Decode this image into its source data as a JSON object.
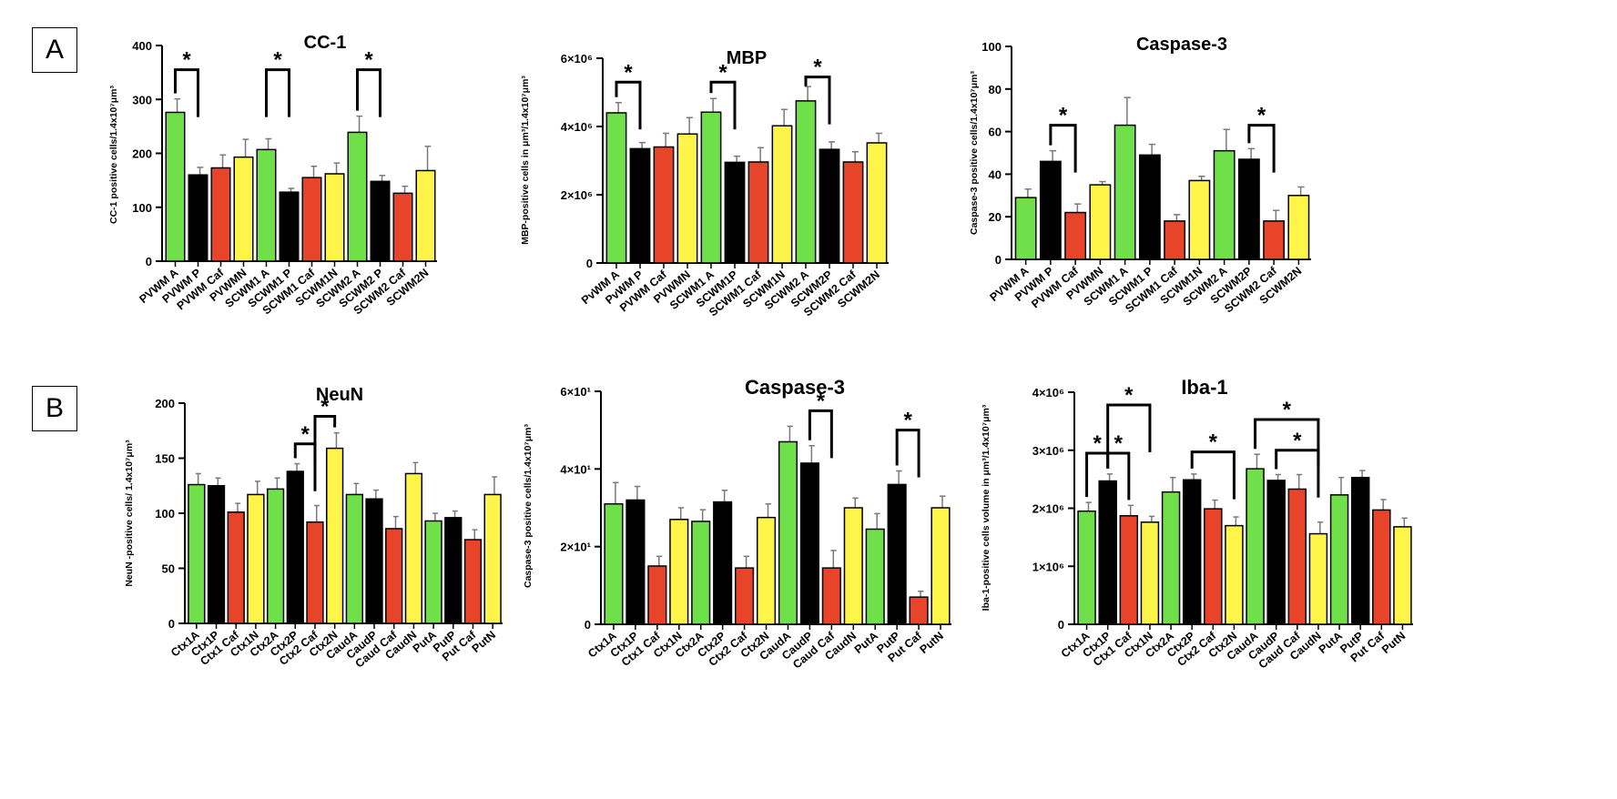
{
  "panels": {
    "a": "A",
    "b": "B"
  },
  "colors": {
    "A": "#6fe04a",
    "P": "#000000",
    "Caf": "#e8442a",
    "N": "#fff44a",
    "axis": "#000000",
    "error": "#7a7a7a"
  },
  "chart_data": [
    {
      "type": "bar",
      "title": "CC-1",
      "ylabel": "CC-1 positive cells/1.4x10⁷μm³",
      "ylim": [
        0,
        400
      ],
      "yticks": [
        "0",
        "100",
        "200",
        "300",
        "400"
      ],
      "categories": [
        "PVWM A",
        "PVWM P",
        "PVWM Caf",
        "PVWMN",
        "SCWM1 A",
        "SCWM1 P",
        "SCWM1 Caf",
        "SCWM1N",
        "SCWM2 A",
        "SCWM2 P",
        "SCWM2 Caf",
        "SCWM2N"
      ],
      "values": [
        276,
        160,
        173,
        193,
        207,
        128,
        155,
        162,
        239,
        148,
        126,
        168
      ],
      "errors": [
        25,
        14,
        24,
        33,
        20,
        7,
        21,
        20,
        30,
        11,
        13,
        45
      ],
      "groups": [
        "A",
        "P",
        "Caf",
        "N",
        "A",
        "P",
        "Caf",
        "N",
        "A",
        "P",
        "Caf",
        "N"
      ],
      "significance": [
        {
          "from": 0,
          "to": 1,
          "label": "*",
          "level": 355
        },
        {
          "from": 4,
          "to": 5,
          "label": "*",
          "level": 355
        },
        {
          "from": 8,
          "to": 9,
          "label": "*",
          "level": 355
        }
      ]
    },
    {
      "type": "bar",
      "title": "MBP",
      "ylabel": "MBP-positive cells in μm³/1.4x10⁷μm³",
      "ylim": [
        0,
        6000000
      ],
      "yticks": [
        "0",
        "2×10⁶",
        "4×10⁶",
        "6×10⁶"
      ],
      "categories": [
        "PvWM A",
        "PvWM P",
        "PVWM Caf",
        "PVWMN",
        "SCWM1 A",
        "SCWM1P",
        "SCWM1 Caf",
        "SCWM1N",
        "SCWM2 A",
        "SCWM2P",
        "SCWM2 Caf",
        "SCWM2N"
      ],
      "values": [
        4400000,
        3350000,
        3400000,
        3780000,
        4420000,
        2950000,
        2960000,
        4020000,
        4750000,
        3330000,
        2960000,
        3520000
      ],
      "errors": [
        300000,
        180000,
        400000,
        480000,
        400000,
        180000,
        420000,
        480000,
        420000,
        220000,
        300000,
        280000
      ],
      "groups": [
        "A",
        "P",
        "Caf",
        "N",
        "A",
        "P",
        "Caf",
        "N",
        "A",
        "P",
        "Caf",
        "N"
      ],
      "significance": [
        {
          "from": 0,
          "to": 1,
          "label": "*",
          "level": 5300000
        },
        {
          "from": 4,
          "to": 5,
          "label": "*",
          "level": 5300000
        },
        {
          "from": 8,
          "to": 9,
          "label": "*",
          "level": 5450000
        }
      ]
    },
    {
      "type": "bar",
      "title": "Caspase-3",
      "ylabel": "Caspase-3 positive cells/1.4x10⁷μm³",
      "ylim": [
        0,
        100
      ],
      "yticks": [
        "0",
        "20",
        "40",
        "60",
        "80",
        "100"
      ],
      "categories": [
        "PVWM A",
        "PVWM P",
        "PVWM Caf",
        "PVWMN",
        "SCWM1 A",
        "SCWM1 P",
        "SCWM1 Caf",
        "SCWM1N",
        "SCWM2 A",
        "SCWM2P",
        "SCWM2 Caf",
        "SCWM2N"
      ],
      "values": [
        29,
        46,
        22,
        35,
        63,
        49,
        18,
        37,
        51,
        47,
        18,
        30
      ],
      "errors": [
        4,
        5,
        4,
        1.5,
        13,
        5,
        3,
        2,
        10,
        5,
        5,
        4
      ],
      "groups": [
        "A",
        "P",
        "Caf",
        "N",
        "A",
        "P",
        "Caf",
        "N",
        "A",
        "P",
        "Caf",
        "N"
      ],
      "significance": [
        {
          "from": 1,
          "to": 2,
          "label": "*",
          "level": 63
        },
        {
          "from": 9,
          "to": 10,
          "label": "*",
          "level": 63
        }
      ]
    },
    {
      "type": "bar",
      "title": "NeuN",
      "ylabel": "NeuN -positive cells/ 1.4x10⁷μm³",
      "ylim": [
        0,
        200
      ],
      "yticks": [
        "0",
        "50",
        "100",
        "150",
        "200"
      ],
      "categories": [
        "Ctx1A",
        "Ctx1P",
        "Ctx1 Caf",
        "Ctx1N",
        "Ctx2A",
        "Ctx2P",
        "Ctx2 Caf",
        "Ctx2N",
        "CaudA",
        "CaudP",
        "Caud Caf",
        "CaudN",
        "PutA",
        "PutP",
        "Put Caf",
        "PutN"
      ],
      "values": [
        126,
        125,
        101,
        117,
        122,
        138,
        92,
        159,
        117,
        113,
        86,
        136,
        93,
        96,
        76,
        117
      ],
      "errors": [
        10,
        7,
        8,
        12,
        10,
        7,
        15,
        14,
        10,
        8,
        11,
        10,
        7,
        6,
        9,
        16
      ],
      "groups": [
        "A",
        "P",
        "Caf",
        "N",
        "A",
        "P",
        "Caf",
        "N",
        "A",
        "P",
        "Caf",
        "N",
        "A",
        "P",
        "Caf",
        "N"
      ],
      "significance": [
        {
          "from": 5,
          "to": 6,
          "label": "*",
          "level": 163
        },
        {
          "from": 6,
          "to": 7,
          "label": "*",
          "level": 188
        }
      ]
    },
    {
      "type": "bar",
      "title": "Caspase-3",
      "ylabel": "Caspase-3 positive cells/1.4x10⁷μm³",
      "ylim": [
        0,
        60
      ],
      "yticks": [
        "0",
        "2×10¹",
        "4×10¹",
        "6×10¹"
      ],
      "categories": [
        "Ctx1A",
        "Ctx1P",
        "Ctx1 Caf",
        "Ctx1N",
        "Ctx2A",
        "Ctx2P",
        "Ctx2 Caf",
        "Ctx2N",
        "CaudA",
        "CaudP",
        "Caud Caf",
        "CaudN",
        "PutA",
        "PutP",
        "Put Caf",
        "PutN"
      ],
      "values": [
        31,
        32,
        15,
        27,
        26.5,
        31.5,
        14.5,
        27.5,
        47,
        41.5,
        14.5,
        30,
        24.5,
        36,
        7,
        30
      ],
      "errors": [
        5.5,
        3.5,
        2.5,
        3,
        3,
        3,
        3,
        3.5,
        4,
        4.5,
        4.5,
        2.5,
        4,
        3.5,
        1.5,
        3
      ],
      "groups": [
        "A",
        "P",
        "Caf",
        "N",
        "A",
        "P",
        "Caf",
        "N",
        "A",
        "P",
        "Caf",
        "N",
        "A",
        "P",
        "Caf",
        "N"
      ],
      "significance": [
        {
          "from": 9,
          "to": 10,
          "label": "*",
          "level": 55
        },
        {
          "from": 13,
          "to": 14,
          "label": "*",
          "level": 50
        }
      ]
    },
    {
      "type": "bar",
      "title": "Iba-1",
      "ylabel": "Iba-1-positive cells volume in μm³/1.4x10⁷μm³",
      "ylim": [
        0,
        4000000
      ],
      "yticks": [
        "0",
        "1×10⁶",
        "2×10⁶",
        "3×10⁶",
        "4×10⁶"
      ],
      "categories": [
        "Ctx1A",
        "Ctx1P",
        "Ctx1 Caf",
        "Ctx1N",
        "Ctx2A",
        "Ctx2P",
        "Ctx2 Caf",
        "Ctx2N",
        "CaudA",
        "CaudP",
        "Caud Caf",
        "CaudN",
        "PutA",
        "PutP",
        "Put Caf",
        "PutN"
      ],
      "values": [
        1950000,
        2470000,
        1870000,
        1760000,
        2280000,
        2490000,
        1990000,
        1700000,
        2680000,
        2480000,
        2330000,
        1560000,
        2230000,
        2530000,
        1970000,
        1680000
      ],
      "errors": [
        150000,
        120000,
        180000,
        100000,
        250000,
        100000,
        150000,
        150000,
        250000,
        100000,
        250000,
        200000,
        300000,
        120000,
        180000,
        150000
      ],
      "groups": [
        "A",
        "P",
        "Caf",
        "N",
        "A",
        "P",
        "Caf",
        "N",
        "A",
        "P",
        "Caf",
        "N",
        "A",
        "P",
        "Caf",
        "N"
      ],
      "significance": [
        {
          "from": 0,
          "to": 1,
          "label": "*",
          "level": 2950000
        },
        {
          "from": 1,
          "to": 2,
          "label": "*",
          "level": 2950000
        },
        {
          "from": 1,
          "to": 3,
          "label": "*",
          "level": 3780000
        },
        {
          "from": 5,
          "to": 7,
          "label": "*",
          "level": 2970000
        },
        {
          "from": 8,
          "to": 11,
          "label": "*",
          "level": 3530000
        },
        {
          "from": 9,
          "to": 11,
          "label": "*",
          "level": 3000000
        }
      ]
    }
  ]
}
